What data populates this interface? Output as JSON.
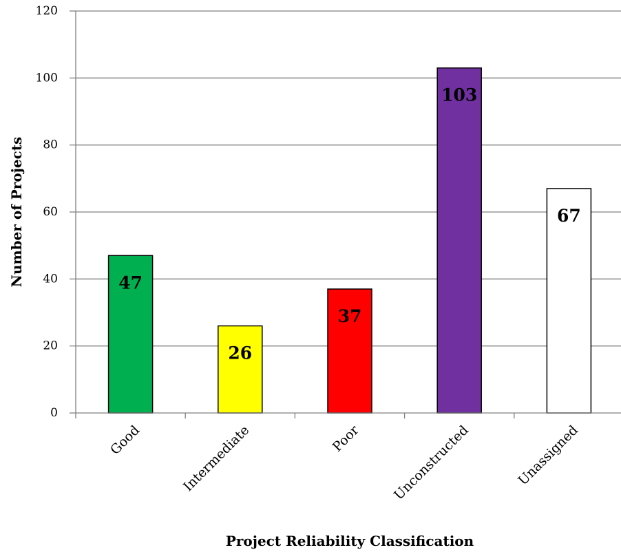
{
  "chart_data": {
    "type": "bar",
    "title": "",
    "xlabel": "Project Reliability Classification",
    "ylabel": "Number of Projects",
    "ylim": [
      0,
      120
    ],
    "yticks": [
      0,
      20,
      40,
      60,
      80,
      100,
      120
    ],
    "grid": true,
    "legend": "none",
    "categories": [
      "Good",
      "Intermediate",
      "Poor",
      "Unconstructed",
      "Unassigned"
    ],
    "values": [
      47,
      26,
      37,
      103,
      67
    ],
    "data_labels": [
      "47",
      "26",
      "37",
      "103",
      "67"
    ],
    "colors": [
      "#00b050",
      "#ffff00",
      "#ff0000",
      "#7030a0",
      "#ffffff"
    ]
  }
}
